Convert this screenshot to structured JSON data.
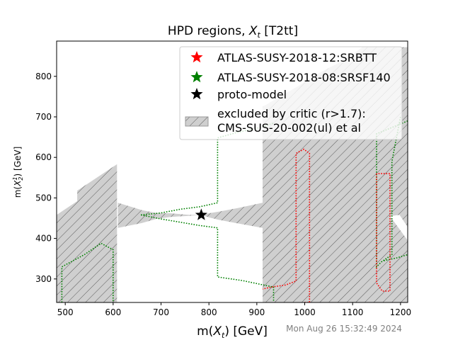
{
  "chart_data": {
    "type": "scatter",
    "title": {
      "prefix": "HPD regions, ",
      "var": "X",
      "sub": "t",
      "suffix": " [T2tt]"
    },
    "xlabel": {
      "prefix": "m(",
      "var": "X",
      "sub": "t",
      "suffix": ") [GeV]"
    },
    "ylabel": {
      "prefix": "m(",
      "var": "X",
      "sub": "2",
      "sup": "1",
      "suffix": ") [GeV]"
    },
    "xlim": [
      482,
      1215
    ],
    "ylim": [
      242,
      887
    ],
    "xticks": [
      500,
      600,
      700,
      800,
      900,
      1000,
      1100,
      1200
    ],
    "yticks": [
      300,
      400,
      500,
      600,
      700,
      800
    ],
    "grid": false,
    "legend_position": "upper right",
    "timestamp": "Mon Aug 26 15:32:49 2024",
    "legend": [
      {
        "label": "ATLAS-SUSY-2018-12:SRBTT",
        "marker": "star",
        "color": "#ff0000"
      },
      {
        "label": "ATLAS-SUSY-2018-08:SRSF140",
        "marker": "star",
        "color": "#008000"
      },
      {
        "label": "proto-model",
        "marker": "star",
        "color": "#000000"
      },
      {
        "label": "excluded by critic (r>1.7):\nCMS-SUS-20-002(ul) et al",
        "marker": "hatch",
        "color": "#cccccc"
      }
    ],
    "proto_model": {
      "x": 784,
      "y": 458
    },
    "excluded_regions": [
      [
        [
          482,
          242
        ],
        [
          482,
          458
        ],
        [
          525,
          492
        ],
        [
          525,
          518
        ],
        [
          608,
          583
        ],
        [
          608,
          242
        ]
      ],
      [
        [
          610,
          488
        ],
        [
          660,
          470
        ],
        [
          690,
          463
        ],
        [
          720,
          462
        ],
        [
          760,
          458
        ],
        [
          784,
          458
        ],
        [
          800,
          462
        ],
        [
          820,
          466
        ],
        [
          860,
          475
        ],
        [
          912,
          488
        ],
        [
          912,
          426
        ],
        [
          860,
          437
        ],
        [
          820,
          446
        ],
        [
          800,
          452
        ],
        [
          784,
          458
        ],
        [
          760,
          456
        ],
        [
          720,
          453
        ],
        [
          690,
          448
        ],
        [
          660,
          438
        ],
        [
          610,
          426
        ]
      ],
      [
        [
          912,
          242
        ],
        [
          912,
          725
        ],
        [
          985,
          775
        ],
        [
          1025,
          805
        ],
        [
          1090,
          845
        ],
        [
          1120,
          872
        ],
        [
          1215,
          872
        ],
        [
          1215,
          242
        ]
      ]
    ],
    "white_holes": [
      [
        [
          1178,
          455
        ],
        [
          1215,
          395
        ],
        [
          1215,
          428
        ],
        [
          1198,
          458
        ]
      ]
    ],
    "contours": [
      {
        "name": "ATLAS-SUSY-2018-08:SRSF140",
        "color": "#008000",
        "points": [
          [
            658,
            458
          ],
          [
            700,
            448
          ],
          [
            740,
            440
          ],
          [
            780,
            432
          ],
          [
            818,
            426
          ],
          [
            818,
            305
          ],
          [
            870,
            296
          ],
          [
            935,
            280
          ],
          [
            935,
            242
          ]
        ]
      },
      {
        "name": "ATLAS-SUSY-2018-08:SRSF140",
        "color": "#008000",
        "points": [
          [
            658,
            458
          ],
          [
            700,
            463
          ],
          [
            740,
            472
          ],
          [
            780,
            478
          ],
          [
            818,
            488
          ],
          [
            818,
            648
          ],
          [
            860,
            662
          ],
          [
            912,
            675
          ],
          [
            935,
            685
          ]
        ]
      },
      {
        "name": "ATLAS-SUSY-2018-08:SRSF140",
        "color": "#008000",
        "points": [
          [
            493,
            242
          ],
          [
            493,
            330
          ],
          [
            540,
            360
          ],
          [
            575,
            388
          ],
          [
            600,
            372
          ],
          [
            600,
            242
          ]
        ]
      },
      {
        "name": "ATLAS-SUSY-2018-08:SRSF140",
        "color": "#008000",
        "points": [
          [
            1215,
            690
          ],
          [
            1150,
            658
          ],
          [
            1150,
            330
          ],
          [
            1160,
            342
          ],
          [
            1182,
            360
          ],
          [
            1182,
            590
          ],
          [
            1200,
            700
          ]
        ]
      },
      {
        "name": "ATLAS-SUSY-2018-08:SRSF140",
        "color": "#008000",
        "points": [
          [
            1165,
            345
          ],
          [
            1192,
            352
          ],
          [
            1215,
            360
          ]
        ]
      },
      {
        "name": "ATLAS-SUSY-2018-12:SRBTT",
        "color": "#ff0000",
        "points": [
          [
            1000,
            242
          ],
          [
            1010,
            242
          ],
          [
            1010,
            610
          ],
          [
            998,
            620
          ],
          [
            982,
            610
          ],
          [
            982,
            295
          ],
          [
            960,
            285
          ],
          [
            930,
            280
          ],
          [
            912,
            275
          ]
        ]
      },
      {
        "name": "ATLAS-SUSY-2018-12:SRBTT",
        "color": "#ff0000",
        "points": [
          [
            1150,
            560
          ],
          [
            1150,
            290
          ],
          [
            1162,
            270
          ],
          [
            1178,
            270
          ],
          [
            1178,
            560
          ],
          [
            1150,
            560
          ]
        ]
      }
    ]
  }
}
